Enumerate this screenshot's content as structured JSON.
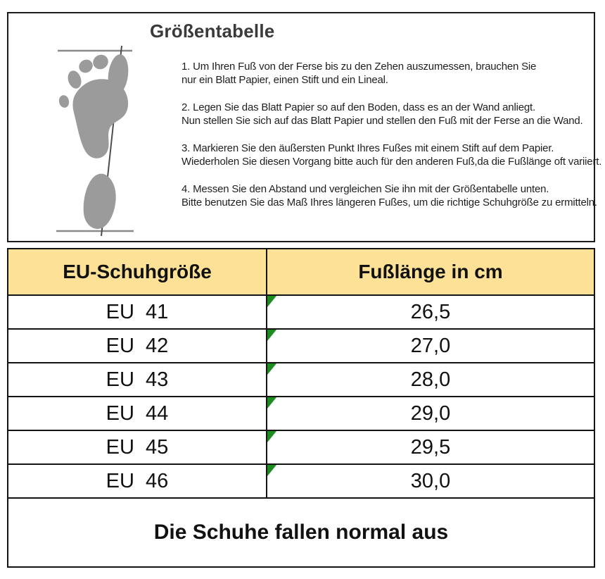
{
  "title": "Größentabelle",
  "instructions": [
    {
      "lines": [
        "1. Um Ihren Fuß von der Ferse bis zu den Zehen auszumessen, brauchen Sie",
        "nur ein Blatt Papier, einen Stift und ein Lineal."
      ]
    },
    {
      "lines": [
        "2. Legen Sie das Blatt Papier so auf den Boden, dass es an der Wand anliegt.",
        "Nun stellen Sie sich auf das Blatt Papier und stellen den Fuß mit der Ferse an die Wand."
      ]
    },
    {
      "lines": [
        "3. Markieren Sie den äußersten Punkt Ihres Fußes mit einem Stift auf dem Papier.",
        "Wiederholen Sie diesen Vorgang bitte auch für den anderen Fuß,da die Fußlänge oft variiert."
      ]
    },
    {
      "lines": [
        "4. Messen Sie den Abstand und vergleichen Sie ihn mit der Größentabelle unten.",
        "Bitte benutzen Sie das Maß Ihres längeren Fußes, um die richtige Schuhgröße zu ermitteln."
      ]
    }
  ],
  "table": {
    "headers": [
      "EU-Schuhgröße",
      "Fußlänge in cm"
    ],
    "rows": [
      {
        "size": "EU  41",
        "length": "26,5"
      },
      {
        "size": "EU  42",
        "length": "27,0"
      },
      {
        "size": "EU  43",
        "length": "28,0"
      },
      {
        "size": "EU  44",
        "length": "29,0"
      },
      {
        "size": "EU  45",
        "length": "29,5"
      },
      {
        "size": "EU  46",
        "length": "30,0"
      }
    ],
    "footer": "Die Schuhe fallen normal aus"
  },
  "icons": {
    "footprint": "footprint-measure-illustration",
    "corner_marker": "green-corner-marker-icon"
  },
  "colors": {
    "header_bg": "#FCE196",
    "marker_green": "#1E8C1E",
    "border": "#141414",
    "footprint_gray": "#9B9B9B",
    "measure_line_gray": "#8A8A8A",
    "diagonal_line": "#4D4D4D"
  }
}
